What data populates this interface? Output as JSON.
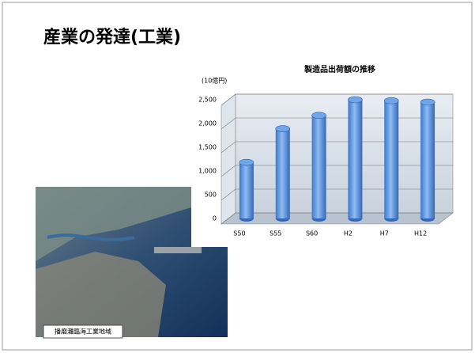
{
  "slide": {
    "title": "産業の発達(工業)",
    "photo_caption": "播磨灘臨海工業地域"
  },
  "chart_data": {
    "type": "bar",
    "title": "製造品出荷額の推移",
    "y_label": "(10億円)",
    "categories": [
      "S50",
      "S55",
      "S60",
      "H2",
      "H7",
      "H12"
    ],
    "values": [
      1180,
      1890,
      2170,
      2500,
      2480,
      2450
    ],
    "color": "#6fa6ea",
    "ylim": [
      0,
      2500
    ],
    "yticks": [
      0,
      500,
      {
        "value": 1000,
        "label": "1,000"
      },
      {
        "value": 1500,
        "label": "1,500"
      },
      {
        "value": 2000,
        "label": "2,000"
      },
      {
        "value": 2500,
        "label": "2,500"
      }
    ],
    "grid": true
  }
}
